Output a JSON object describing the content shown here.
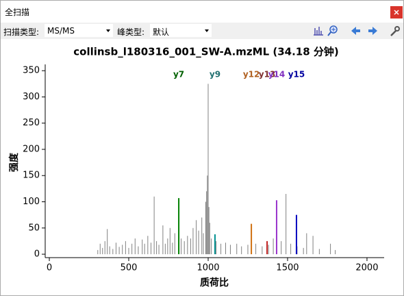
{
  "window": {
    "title": "全扫描"
  },
  "toolbar": {
    "scan_type_label": "扫描类型:",
    "scan_type": "MS/MS",
    "peak_type_label": "峰类型:",
    "peak_type": "默认"
  },
  "chart_data": {
    "type": "spectrum",
    "title": "collinsb_l180316_001_SW-A.mzML (34.18 分钟)",
    "x_label": "质荷比",
    "y_label": "强度",
    "xlim": [
      -26,
      2108
    ],
    "ylim": [
      -6.5,
      362
    ],
    "xticks": [
      0,
      500,
      1000,
      1500,
      2000
    ],
    "yticks": [
      0,
      50,
      100,
      150,
      200,
      250,
      300,
      350
    ],
    "peaks": {
      "color": "#808080",
      "x": [
        305,
        320,
        335,
        350,
        365,
        380,
        400,
        420,
        440,
        460,
        480,
        500,
        520,
        540,
        560,
        585,
        600,
        620,
        640,
        660,
        675,
        690,
        715,
        730,
        745,
        760,
        775,
        790,
        830,
        850,
        870,
        890,
        905,
        925,
        940,
        960,
        970,
        985,
        990,
        995,
        1000,
        1005,
        1010,
        1020,
        1050,
        1080,
        1110,
        1140,
        1180,
        1210,
        1250,
        1300,
        1340,
        1380,
        1410,
        1460,
        1490,
        1520,
        1560,
        1600,
        1620,
        1660,
        1700,
        1770,
        1800
      ],
      "values": [
        8,
        20,
        12,
        25,
        48,
        15,
        10,
        22,
        14,
        18,
        25,
        12,
        20,
        30,
        15,
        28,
        20,
        35,
        22,
        110,
        25,
        18,
        55,
        20,
        30,
        50,
        22,
        40,
        30,
        25,
        35,
        30,
        50,
        65,
        45,
        70,
        40,
        100,
        120,
        150,
        325,
        90,
        60,
        30,
        25,
        20,
        22,
        18,
        20,
        15,
        18,
        20,
        15,
        18,
        30,
        25,
        115,
        20,
        15,
        12,
        40,
        35,
        10,
        20,
        8
      ]
    },
    "annotated_peaks": [
      {
        "label": "y7",
        "x": 815,
        "value": 107,
        "color": "#008000",
        "label_color": "#006000"
      },
      {
        "label": "y9",
        "x": 1043,
        "value": 38,
        "color": "#009090",
        "label_color": "#207070"
      },
      {
        "label": "y12",
        "x": 1272,
        "value": 58,
        "color": "#d07010",
        "label_color": "#b06020"
      },
      {
        "label": "y13",
        "x": 1371,
        "value": 25,
        "color": "#c02020",
        "label_color": "#803030"
      },
      {
        "label": "y14",
        "x": 1431,
        "value": 103,
        "color": "#9932cc",
        "label_color": "#8030c0"
      },
      {
        "label": "y15",
        "x": 1556,
        "value": 75,
        "color": "#0000c0",
        "label_color": "#0000a0"
      }
    ]
  }
}
